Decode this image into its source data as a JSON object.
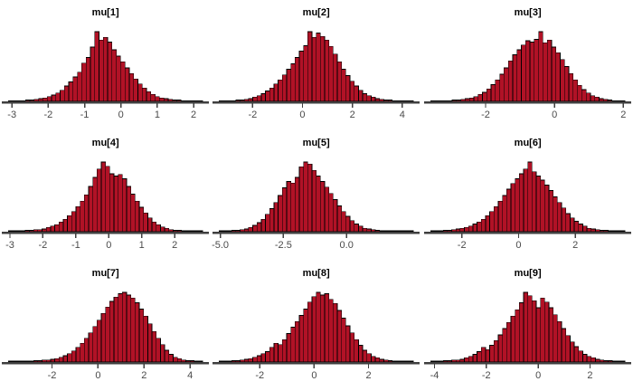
{
  "figure": {
    "description": "3x3 grid of posterior histograms for parameters mu[1]..mu[9]",
    "rows": 3,
    "cols": 3
  },
  "style": {
    "background": "#ffffff",
    "bar_fill": "#B11226",
    "bar_stroke": "#000000",
    "axis_color": "#3f3f3f",
    "tick_label_color": "#4a4a4a",
    "title_color": "#000000"
  },
  "chart_data": [
    {
      "type": "bar",
      "subtype": "histogram",
      "title": "mu[1]",
      "xlabel": "",
      "ylabel": "",
      "x_min": -3.1,
      "x_max": 2.25,
      "grid": false,
      "legend": false,
      "ticks": [
        {
          "value": -3,
          "label": "-3"
        },
        {
          "value": -2,
          "label": "-2"
        },
        {
          "value": -1,
          "label": "-1"
        },
        {
          "value": 0,
          "label": "0"
        },
        {
          "value": 1,
          "label": "1"
        },
        {
          "value": 2,
          "label": "2"
        }
      ],
      "heights_pct_of_max": [
        1,
        1,
        1,
        1,
        2,
        2,
        3,
        4,
        5,
        7,
        9,
        12,
        16,
        22,
        28,
        35,
        42,
        55,
        63,
        78,
        100,
        88,
        92,
        85,
        74,
        65,
        57,
        48,
        40,
        32,
        25,
        19,
        14,
        10,
        7,
        5,
        4,
        3,
        2,
        2,
        1,
        1,
        1,
        1,
        1
      ]
    },
    {
      "type": "bar",
      "subtype": "histogram",
      "title": "mu[2]",
      "xlabel": "",
      "ylabel": "",
      "x_min": -3.35,
      "x_max": 4.45,
      "grid": false,
      "legend": false,
      "ticks": [
        {
          "value": -2,
          "label": "-2"
        },
        {
          "value": 0,
          "label": "0"
        },
        {
          "value": 2,
          "label": "2"
        },
        {
          "value": 4,
          "label": "4"
        }
      ],
      "heights_pct_of_max": [
        1,
        1,
        1,
        1,
        2,
        2,
        3,
        4,
        6,
        8,
        11,
        15,
        19,
        25,
        31,
        38,
        46,
        54,
        63,
        72,
        80,
        100,
        92,
        98,
        93,
        88,
        79,
        68,
        57,
        46,
        37,
        29,
        22,
        16,
        11,
        8,
        6,
        4,
        3,
        2,
        2,
        1,
        1,
        1,
        1,
        1
      ]
    },
    {
      "type": "bar",
      "subtype": "histogram",
      "title": "mu[3]",
      "xlabel": "",
      "ylabel": "",
      "x_min": -3.6,
      "x_max": 2.05,
      "grid": false,
      "legend": false,
      "ticks": [
        {
          "value": -2,
          "label": "-2"
        },
        {
          "value": 0,
          "label": "0"
        },
        {
          "value": 2,
          "label": "2"
        }
      ],
      "heights_pct_of_max": [
        1,
        1,
        1,
        1,
        1,
        2,
        2,
        3,
        4,
        5,
        7,
        10,
        13,
        18,
        24,
        31,
        39,
        48,
        58,
        67,
        74,
        81,
        87,
        85,
        89,
        100,
        84,
        88,
        78,
        70,
        60,
        50,
        40,
        31,
        23,
        17,
        12,
        8,
        6,
        4,
        3,
        2,
        1,
        1,
        1
      ]
    },
    {
      "type": "bar",
      "subtype": "histogram",
      "title": "mu[4]",
      "xlabel": "",
      "ylabel": "",
      "x_min": -3.05,
      "x_max": 2.85,
      "grid": false,
      "legend": false,
      "ticks": [
        {
          "value": -3,
          "label": "-3"
        },
        {
          "value": -2,
          "label": "-2"
        },
        {
          "value": -1,
          "label": "-1"
        },
        {
          "value": 0,
          "label": "0"
        },
        {
          "value": 1,
          "label": "1"
        },
        {
          "value": 2,
          "label": "2"
        }
      ],
      "heights_pct_of_max": [
        1,
        1,
        1,
        1,
        2,
        2,
        3,
        3,
        4,
        6,
        8,
        10,
        14,
        18,
        23,
        29,
        36,
        44,
        53,
        65,
        78,
        90,
        100,
        94,
        83,
        80,
        82,
        76,
        65,
        54,
        44,
        35,
        27,
        20,
        14,
        10,
        7,
        5,
        3,
        2,
        2,
        1,
        1,
        1,
        1,
        1
      ]
    },
    {
      "type": "bar",
      "subtype": "histogram",
      "title": "mu[5]",
      "xlabel": "",
      "ylabel": "",
      "x_min": -5.05,
      "x_max": 2.65,
      "grid": false,
      "legend": false,
      "ticks": [
        {
          "value": -5.0,
          "label": "-5.0"
        },
        {
          "value": -2.5,
          "label": "-2.5"
        },
        {
          "value": 0.0,
          "label": "0.0"
        }
      ],
      "heights_pct_of_max": [
        1,
        1,
        1,
        2,
        2,
        3,
        4,
        6,
        9,
        13,
        18,
        25,
        33,
        42,
        52,
        63,
        72,
        70,
        78,
        93,
        100,
        97,
        88,
        80,
        72,
        64,
        55,
        46,
        37,
        29,
        22,
        16,
        11,
        8,
        5,
        4,
        3,
        2,
        1,
        1,
        1,
        1,
        1,
        1,
        1,
        1
      ]
    },
    {
      "type": "bar",
      "subtype": "histogram",
      "title": "mu[6]",
      "xlabel": "",
      "ylabel": "",
      "x_min": -3.1,
      "x_max": 3.75,
      "grid": false,
      "legend": false,
      "ticks": [
        {
          "value": -2,
          "label": "-2"
        },
        {
          "value": 0,
          "label": "0"
        },
        {
          "value": 2,
          "label": "2"
        }
      ],
      "heights_pct_of_max": [
        1,
        1,
        1,
        2,
        2,
        3,
        4,
        5,
        6,
        8,
        11,
        14,
        18,
        23,
        29,
        36,
        44,
        52,
        61,
        69,
        76,
        83,
        90,
        100,
        86,
        80,
        74,
        67,
        59,
        50,
        42,
        34,
        26,
        20,
        15,
        11,
        8,
        5,
        4,
        3,
        2,
        2,
        1,
        1,
        1,
        1
      ]
    },
    {
      "type": "bar",
      "subtype": "histogram",
      "title": "mu[7]",
      "xlabel": "",
      "ylabel": "",
      "x_min": -3.9,
      "x_max": 4.55,
      "grid": false,
      "legend": false,
      "ticks": [
        {
          "value": -2,
          "label": "-2"
        },
        {
          "value": 0,
          "label": "0"
        },
        {
          "value": 2,
          "label": "2"
        },
        {
          "value": 4,
          "label": "4"
        }
      ],
      "heights_pct_of_max": [
        1,
        1,
        1,
        1,
        1,
        1,
        2,
        2,
        3,
        3,
        4,
        5,
        7,
        9,
        12,
        16,
        21,
        27,
        34,
        42,
        51,
        60,
        70,
        79,
        87,
        93,
        98,
        100,
        96,
        92,
        85,
        76,
        66,
        55,
        44,
        34,
        25,
        17,
        11,
        7,
        5,
        3,
        2,
        2,
        1,
        1
      ]
    },
    {
      "type": "bar",
      "subtype": "histogram",
      "title": "mu[8]",
      "xlabel": "",
      "ylabel": "",
      "x_min": -3.5,
      "x_max": 3.65,
      "grid": false,
      "legend": false,
      "ticks": [
        {
          "value": -2,
          "label": "-2"
        },
        {
          "value": 0,
          "label": "0"
        },
        {
          "value": 2,
          "label": "2"
        }
      ],
      "heights_pct_of_max": [
        1,
        1,
        1,
        2,
        2,
        3,
        4,
        5,
        7,
        9,
        12,
        15,
        21,
        27,
        25,
        32,
        41,
        50,
        58,
        67,
        76,
        86,
        94,
        100,
        96,
        98,
        90,
        84,
        74,
        63,
        52,
        42,
        32,
        24,
        17,
        12,
        8,
        6,
        4,
        3,
        2,
        1,
        1,
        1,
        1,
        1
      ]
    },
    {
      "type": "bar",
      "subtype": "histogram",
      "title": "mu[9]",
      "xlabel": "",
      "ylabel": "",
      "x_min": -4.15,
      "x_max": 3.35,
      "grid": false,
      "legend": false,
      "ticks": [
        {
          "value": -4,
          "label": "-4"
        },
        {
          "value": -2,
          "label": "-2"
        },
        {
          "value": 0,
          "label": "0"
        },
        {
          "value": 2,
          "label": "2"
        }
      ],
      "heights_pct_of_max": [
        1,
        1,
        1,
        2,
        2,
        3,
        3,
        4,
        6,
        8,
        11,
        15,
        21,
        18,
        24,
        31,
        39,
        48,
        57,
        66,
        75,
        85,
        100,
        95,
        88,
        78,
        92,
        86,
        78,
        68,
        58,
        48,
        38,
        29,
        22,
        16,
        11,
        8,
        6,
        4,
        3,
        2,
        2,
        1,
        1,
        1
      ]
    }
  ]
}
